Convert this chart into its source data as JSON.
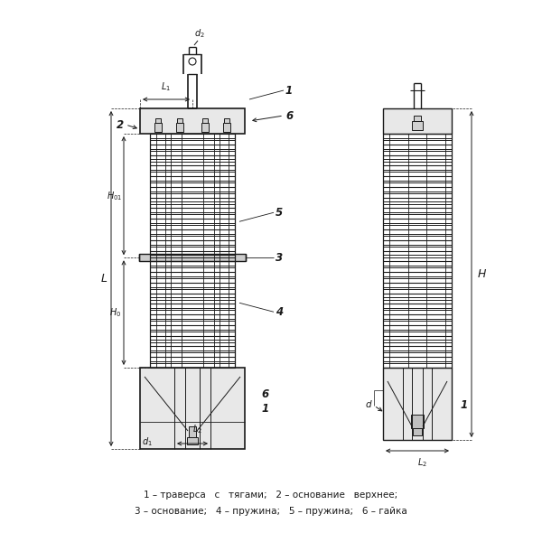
{
  "bg_color": "#ffffff",
  "line_color": "#1a1a1a",
  "caption_line1": "1 – траверса   с   тягами;   2 – основание   верхнее;",
  "caption_line2": "3 – основание;   4 – пружина;   5 – пружина;   6 – гайка"
}
